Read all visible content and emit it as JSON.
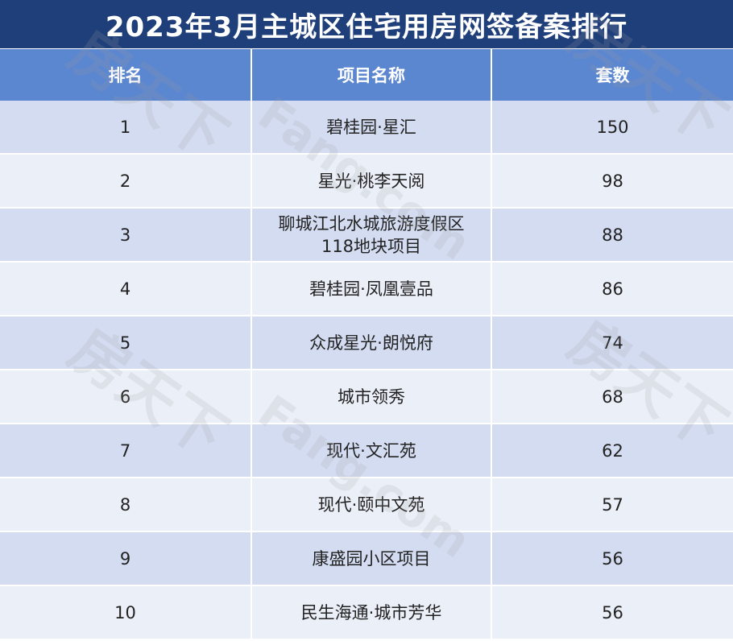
{
  "title": "2023年3月主城区住宅用房网签备案排行",
  "table": {
    "headers": [
      "排名",
      "项目名称",
      "套数"
    ],
    "rows": [
      {
        "rank": "1",
        "name": "碧桂园·星汇",
        "count": "150"
      },
      {
        "rank": "2",
        "name": "星光·桃李天阅",
        "count": "98"
      },
      {
        "rank": "3",
        "name": "聊城江北水城旅游度假区118地块项目",
        "count": "88"
      },
      {
        "rank": "4",
        "name": "碧桂园·凤凰壹品",
        "count": "86"
      },
      {
        "rank": "5",
        "name": "众成星光·朗悦府",
        "count": "74"
      },
      {
        "rank": "6",
        "name": "城市领秀",
        "count": "68"
      },
      {
        "rank": "7",
        "name": "现代·文汇苑",
        "count": "62"
      },
      {
        "rank": "8",
        "name": "现代·颐中文苑",
        "count": "57"
      },
      {
        "rank": "9",
        "name": "康盛园小区项目",
        "count": "56"
      },
      {
        "rank": "10",
        "name": "民生海通·城市芳华",
        "count": "56"
      }
    ]
  },
  "watermark": {
    "brand": "房天下",
    "domain": "Fang.com"
  },
  "colors": {
    "title_bg": "#1f3f7a",
    "header_bg": "#5b86d0",
    "row_odd": "#d3dcf1",
    "row_even": "#ebeff8"
  }
}
